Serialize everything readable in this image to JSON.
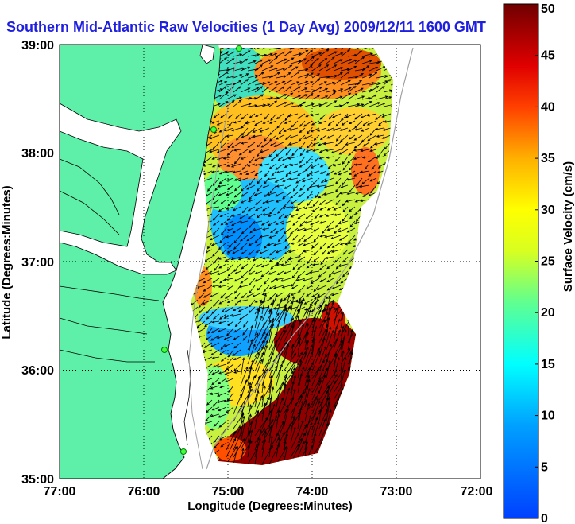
{
  "title": "Southern Mid-Atlantic Raw Velocities (1 Day Avg) 2009/12/11 1600 GMT",
  "map": {
    "xlabel": "Longitude (Degrees:Minutes)",
    "ylabel": "Latitude (Degrees:Minutes)",
    "x_ticks": [
      "77:00",
      "76:00",
      "75:00",
      "74:00",
      "73:00",
      "72:00"
    ],
    "y_ticks": [
      "35:00",
      "36:00",
      "37:00",
      "38:00",
      "39:00"
    ],
    "lon_range": [
      -77,
      -72
    ],
    "lat_range": [
      35,
      39
    ],
    "grid": "dotted",
    "land_color": "#5ef0a8",
    "vector_color": "#000000"
  },
  "colorbar": {
    "label": "Surface Velocity (cm/s)",
    "ticks": [
      "0",
      "5",
      "10",
      "15",
      "20",
      "25",
      "30",
      "35",
      "40",
      "45",
      "50"
    ],
    "range": [
      0,
      50
    ],
    "colormap": "jet"
  }
}
